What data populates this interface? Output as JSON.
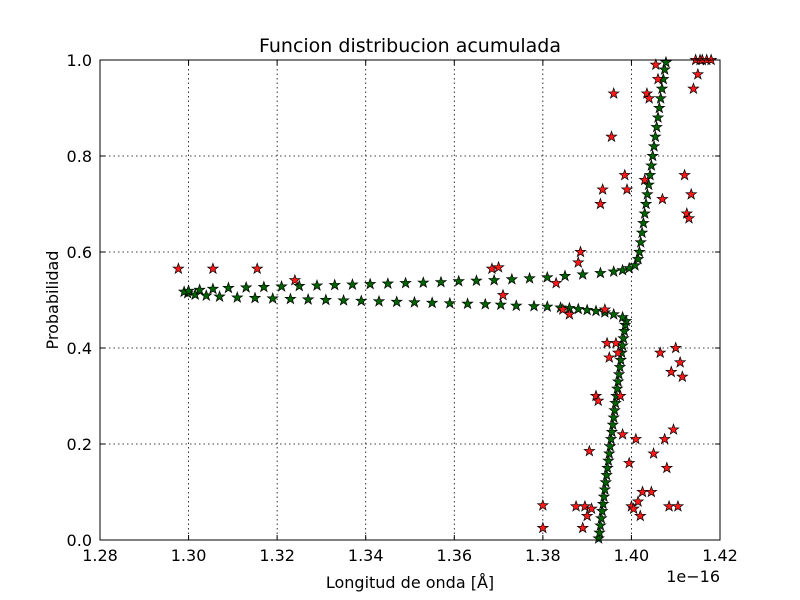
{
  "chart_data": {
    "type": "scatter",
    "title": "Funcion distribucion acumulada",
    "xlabel": "Longitud de onda [Å]",
    "ylabel": "Probabilidad",
    "x_offset_label": "1e−16",
    "x_scale_exponent": -16,
    "xlim": [
      1.28,
      1.42
    ],
    "ylim": [
      0.0,
      1.0
    ],
    "xticks": [
      "1.28",
      "1.30",
      "1.32",
      "1.34",
      "1.36",
      "1.38",
      "1.40",
      "1.42"
    ],
    "yticks": [
      "0.0",
      "0.2",
      "0.4",
      "0.6",
      "0.8",
      "1.0"
    ],
    "grid": true,
    "marker": "star",
    "colors": {
      "fit": "#006400",
      "data": "#ff1a1a",
      "edge": "#000000"
    },
    "series": [
      {
        "marker_color": "#006400",
        "points": [
          [
            1.3926,
            0.003
          ],
          [
            1.3928,
            0.015
          ],
          [
            1.393,
            0.03
          ],
          [
            1.3932,
            0.045
          ],
          [
            1.3934,
            0.06
          ],
          [
            1.3936,
            0.075
          ],
          [
            1.3938,
            0.09
          ],
          [
            1.394,
            0.105
          ],
          [
            1.3942,
            0.12
          ],
          [
            1.3944,
            0.135
          ],
          [
            1.3946,
            0.15
          ],
          [
            1.3948,
            0.165
          ],
          [
            1.395,
            0.18
          ],
          [
            1.3952,
            0.195
          ],
          [
            1.3954,
            0.21
          ],
          [
            1.3956,
            0.225
          ],
          [
            1.3958,
            0.24
          ],
          [
            1.396,
            0.255
          ],
          [
            1.3962,
            0.27
          ],
          [
            1.3964,
            0.285
          ],
          [
            1.3966,
            0.3
          ],
          [
            1.3968,
            0.315
          ],
          [
            1.397,
            0.33
          ],
          [
            1.3972,
            0.345
          ],
          [
            1.3974,
            0.36
          ],
          [
            1.3976,
            0.375
          ],
          [
            1.3978,
            0.39
          ],
          [
            1.398,
            0.405
          ],
          [
            1.3982,
            0.42
          ],
          [
            1.3984,
            0.435
          ],
          [
            1.3986,
            0.448
          ],
          [
            1.3988,
            0.456
          ],
          [
            1.398,
            0.464
          ],
          [
            1.396,
            0.47
          ],
          [
            1.394,
            0.474
          ],
          [
            1.392,
            0.477
          ],
          [
            1.39,
            0.479
          ],
          [
            1.388,
            0.481
          ],
          [
            1.386,
            0.483
          ],
          [
            1.384,
            0.484
          ],
          [
            1.381,
            0.486
          ],
          [
            1.378,
            0.487
          ],
          [
            1.374,
            0.488
          ],
          [
            1.3705,
            0.49
          ],
          [
            1.367,
            0.491
          ],
          [
            1.363,
            0.492
          ],
          [
            1.359,
            0.493
          ],
          [
            1.355,
            0.494
          ],
          [
            1.351,
            0.495
          ],
          [
            1.347,
            0.496
          ],
          [
            1.343,
            0.497
          ],
          [
            1.339,
            0.498
          ],
          [
            1.335,
            0.499
          ],
          [
            1.331,
            0.5
          ],
          [
            1.327,
            0.501
          ],
          [
            1.323,
            0.502
          ],
          [
            1.319,
            0.503
          ],
          [
            1.315,
            0.504
          ],
          [
            1.311,
            0.505
          ],
          [
            1.307,
            0.507
          ],
          [
            1.304,
            0.509
          ],
          [
            1.3015,
            0.511
          ],
          [
            1.2998,
            0.514
          ],
          [
            1.299,
            0.517
          ],
          [
            1.3,
            0.519
          ],
          [
            1.3025,
            0.521
          ],
          [
            1.3055,
            0.523
          ],
          [
            1.309,
            0.525
          ],
          [
            1.313,
            0.526
          ],
          [
            1.317,
            0.527
          ],
          [
            1.321,
            0.528
          ],
          [
            1.325,
            0.529
          ],
          [
            1.329,
            0.53
          ],
          [
            1.333,
            0.531
          ],
          [
            1.337,
            0.532
          ],
          [
            1.341,
            0.533
          ],
          [
            1.345,
            0.534
          ],
          [
            1.349,
            0.535
          ],
          [
            1.353,
            0.536
          ],
          [
            1.357,
            0.537
          ],
          [
            1.361,
            0.539
          ],
          [
            1.365,
            0.54
          ],
          [
            1.369,
            0.541
          ],
          [
            1.373,
            0.543
          ],
          [
            1.377,
            0.545
          ],
          [
            1.381,
            0.547
          ],
          [
            1.385,
            0.55
          ],
          [
            1.389,
            0.553
          ],
          [
            1.393,
            0.556
          ],
          [
            1.396,
            0.559
          ],
          [
            1.398,
            0.562
          ],
          [
            1.3995,
            0.566
          ],
          [
            1.4008,
            0.572
          ],
          [
            1.4015,
            0.585
          ],
          [
            1.4018,
            0.6
          ],
          [
            1.4021,
            0.62
          ],
          [
            1.4024,
            0.64
          ],
          [
            1.4027,
            0.66
          ],
          [
            1.403,
            0.68
          ],
          [
            1.4033,
            0.7
          ],
          [
            1.4036,
            0.72
          ],
          [
            1.4039,
            0.74
          ],
          [
            1.4042,
            0.76
          ],
          [
            1.4045,
            0.78
          ],
          [
            1.4048,
            0.8
          ],
          [
            1.4051,
            0.82
          ],
          [
            1.4054,
            0.84
          ],
          [
            1.4057,
            0.86
          ],
          [
            1.406,
            0.88
          ],
          [
            1.4063,
            0.9
          ],
          [
            1.4066,
            0.92
          ],
          [
            1.4069,
            0.94
          ],
          [
            1.4072,
            0.96
          ],
          [
            1.4075,
            0.98
          ],
          [
            1.4078,
            0.995
          ]
        ]
      },
      {
        "marker_color": "#ff1a1a",
        "points": [
          [
            1.2977,
            0.565
          ],
          [
            1.3055,
            0.565
          ],
          [
            1.3155,
            0.565
          ],
          [
            1.324,
            0.541
          ],
          [
            1.3685,
            0.565
          ],
          [
            1.37,
            0.568
          ],
          [
            1.371,
            0.51
          ],
          [
            1.38,
            0.072
          ],
          [
            1.38,
            0.025
          ],
          [
            1.383,
            0.535
          ],
          [
            1.3845,
            0.48
          ],
          [
            1.386,
            0.47
          ],
          [
            1.3875,
            0.07
          ],
          [
            1.388,
            0.578
          ],
          [
            1.3885,
            0.6
          ],
          [
            1.389,
            0.025
          ],
          [
            1.3895,
            0.07
          ],
          [
            1.39,
            0.05
          ],
          [
            1.3905,
            0.185
          ],
          [
            1.391,
            0.065
          ],
          [
            1.392,
            0.3
          ],
          [
            1.3925,
            0.29
          ],
          [
            1.393,
            0.7
          ],
          [
            1.3935,
            0.73
          ],
          [
            1.394,
            0.48
          ],
          [
            1.3945,
            0.41
          ],
          [
            1.395,
            0.38
          ],
          [
            1.3955,
            0.84
          ],
          [
            1.396,
            0.93
          ],
          [
            1.3965,
            0.41
          ],
          [
            1.397,
            0.39
          ],
          [
            1.3975,
            0.3
          ],
          [
            1.398,
            0.22
          ],
          [
            1.3985,
            0.76
          ],
          [
            1.399,
            0.73
          ],
          [
            1.3995,
            0.16
          ],
          [
            1.4,
            0.07
          ],
          [
            1.4005,
            0.065
          ],
          [
            1.401,
            0.21
          ],
          [
            1.4015,
            0.08
          ],
          [
            1.402,
            0.05
          ],
          [
            1.4025,
            0.1
          ],
          [
            1.403,
            0.75
          ],
          [
            1.4035,
            0.93
          ],
          [
            1.404,
            0.92
          ],
          [
            1.4045,
            0.1
          ],
          [
            1.405,
            0.18
          ],
          [
            1.4055,
            0.99
          ],
          [
            1.406,
            0.96
          ],
          [
            1.4065,
            0.39
          ],
          [
            1.407,
            0.71
          ],
          [
            1.4075,
            0.21
          ],
          [
            1.408,
            0.15
          ],
          [
            1.4085,
            0.07
          ],
          [
            1.409,
            0.35
          ],
          [
            1.4095,
            0.23
          ],
          [
            1.41,
            0.4
          ],
          [
            1.4105,
            0.07
          ],
          [
            1.411,
            0.37
          ],
          [
            1.4115,
            0.34
          ],
          [
            1.412,
            0.76
          ],
          [
            1.4125,
            0.68
          ],
          [
            1.413,
            0.67
          ],
          [
            1.4135,
            0.72
          ],
          [
            1.414,
            0.94
          ],
          [
            1.4145,
            1.0
          ],
          [
            1.415,
            0.97
          ],
          [
            1.4155,
            1.0
          ],
          [
            1.416,
            1.0
          ],
          [
            1.417,
            1.0
          ],
          [
            1.418,
            1.0
          ]
        ]
      }
    ]
  }
}
